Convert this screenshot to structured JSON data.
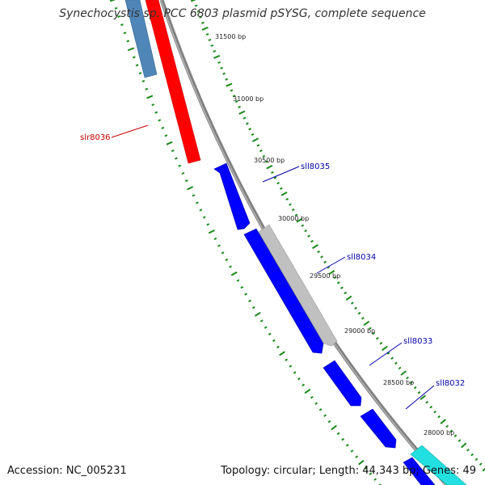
{
  "title": "Synechocystis sp. PCC 6803 plasmid pSYSG, complete sequence",
  "accession": "Accession: NC_005231",
  "summary": "Topology: circular; Length: 44,343 bp; Genes: 49",
  "colors": {
    "backbone": "#808080",
    "tick": "#1a8a1a",
    "forward_gene": "#ff0000",
    "reverse_gene": "#0000ff",
    "gray_feature": "#c0c0c0",
    "steelblue_feature": "#4f86b8",
    "cyan_feature": "#22e0e0",
    "reverse_label": "#0000aa",
    "forward_label": "#cc0000"
  },
  "tick_labels": [
    "31500 bp",
    "31000 bp",
    "30500 bp",
    "30000 bp",
    "29500 bp",
    "29000 bp",
    "28500 bp",
    "28000 bp"
  ],
  "gene_labels": [
    {
      "name": "slr8036",
      "strand": "forward"
    },
    {
      "name": "sll8035",
      "strand": "reverse"
    },
    {
      "name": "sll8034",
      "strand": "reverse"
    },
    {
      "name": "sll8033",
      "strand": "reverse"
    },
    {
      "name": "sll8032",
      "strand": "reverse"
    }
  ]
}
